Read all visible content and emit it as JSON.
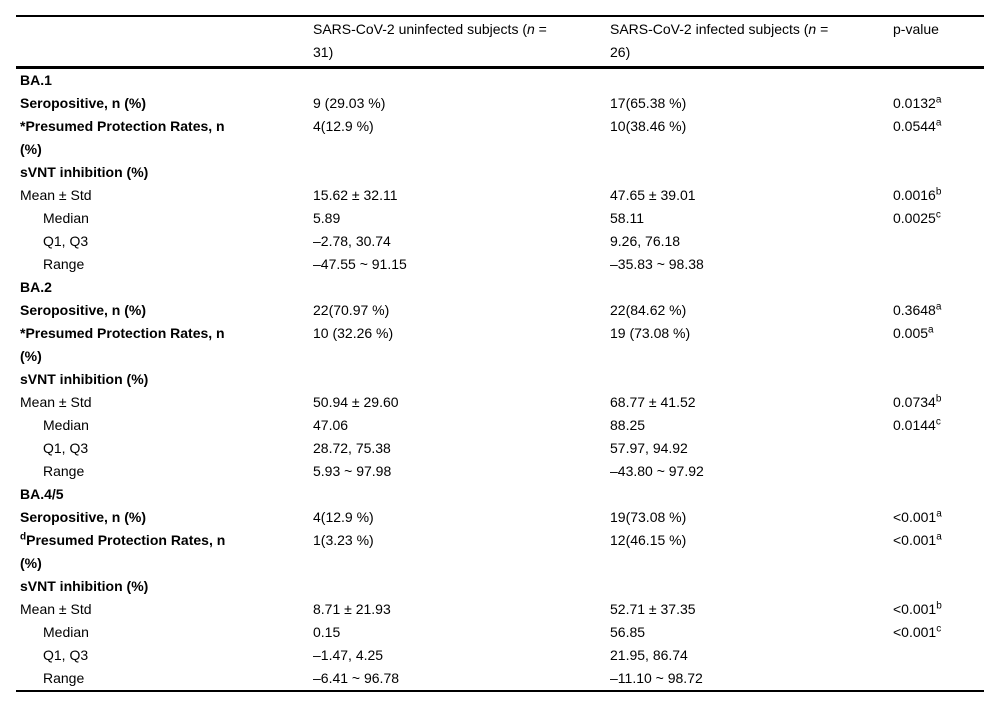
{
  "table": {
    "header": {
      "col1": "",
      "col2": {
        "pre": "SARS-CoV-2 uninfected subjects (",
        "n": "n",
        "eq": " =",
        "line2": "31)"
      },
      "col3": {
        "pre": "SARS-CoV-2 infected subjects (",
        "n": "n",
        "eq": " =",
        "line2": "26)"
      },
      "col4": "p-value"
    },
    "rows": [
      {
        "label": "BA.1",
        "bold": true,
        "section": true
      },
      {
        "label": "Seropositive, n (%)",
        "bold": true,
        "c1": "9 (29.03 %)",
        "c2": "17(65.38 %)",
        "p": "0.0132",
        "p_sup": "a"
      },
      {
        "label": "*Presumed Protection Rates, n (%)",
        "bold": true,
        "c1": "4(12.9 %)",
        "c2": "10(38.46 %)",
        "p": "0.0544",
        "p_sup": "a"
      },
      {
        "label": "sVNT inhibition (%)",
        "bold": true
      },
      {
        "label": "Mean ± Std",
        "c1": "15.62 ± 32.11",
        "c2": "47.65 ± 39.01",
        "p": "0.0016",
        "p_sup": "b"
      },
      {
        "label": "Median",
        "indent": true,
        "c1": "5.89",
        "c2": "58.11",
        "p": "0.0025",
        "p_sup": "c"
      },
      {
        "label": "Q1, Q3",
        "indent": true,
        "c1": "–2.78, 30.74",
        "c2": "9.26, 76.18"
      },
      {
        "label": "Range",
        "indent": true,
        "c1": "–47.55 ~ 91.15",
        "c2": "–35.83 ~ 98.38"
      },
      {
        "label": "BA.2",
        "bold": true,
        "section": true
      },
      {
        "label": "Seropositive, n (%)",
        "bold": true,
        "c1": "22(70.97 %)",
        "c2": "22(84.62 %)",
        "p": "0.3648",
        "p_sup": "a"
      },
      {
        "label": "*Presumed Protection Rates, n (%)",
        "bold": true,
        "c1": "10 (32.26 %)",
        "c2": "19 (73.08 %)",
        "p": "0.005",
        "p_sup": "a"
      },
      {
        "label": "sVNT inhibition (%)",
        "bold": true
      },
      {
        "label": "Mean ± Std",
        "c1": "50.94 ± 29.60",
        "c2": "68.77 ± 41.52",
        "p": "0.0734",
        "p_sup": "b"
      },
      {
        "label": "Median",
        "indent": true,
        "c1": "47.06",
        "c2": "88.25",
        "p": "0.0144",
        "p_sup": "c"
      },
      {
        "label": "Q1, Q3",
        "indent": true,
        "c1": "28.72, 75.38",
        "c2": "57.97, 94.92"
      },
      {
        "label": "Range",
        "indent": true,
        "c1": "5.93 ~ 97.98",
        "c2": "–43.80 ~ 97.92"
      },
      {
        "label": "BA.4/5",
        "bold": true,
        "section": true
      },
      {
        "label": "Seropositive, n (%)",
        "bold": true,
        "c1": "4(12.9 %)",
        "c2": "19(73.08 %)",
        "p": "<0.001",
        "p_sup": "a"
      },
      {
        "sup": "d",
        "label": "Presumed Protection Rates, n (%)",
        "bold": true,
        "c1": "1(3.23 %)",
        "c2": "12(46.15 %)",
        "p": "<0.001",
        "p_sup": "a"
      },
      {
        "label": "sVNT inhibition (%)",
        "bold": true
      },
      {
        "label": "Mean ± Std",
        "c1": "8.71 ± 21.93",
        "c2": "52.71 ± 37.35",
        "p": "<0.001",
        "p_sup": "b"
      },
      {
        "label": "Median",
        "indent": true,
        "c1": "0.15",
        "c2": "56.85",
        "p": "<0.001",
        "p_sup": "c"
      },
      {
        "label": "Q1, Q3",
        "indent": true,
        "c1": "–1.47, 4.25",
        "c2": "21.95, 86.74"
      },
      {
        "label": "Range",
        "indent": true,
        "c1": "–6.41 ~ 96.78",
        "c2": "–11.10 ~ 98.72"
      }
    ]
  }
}
